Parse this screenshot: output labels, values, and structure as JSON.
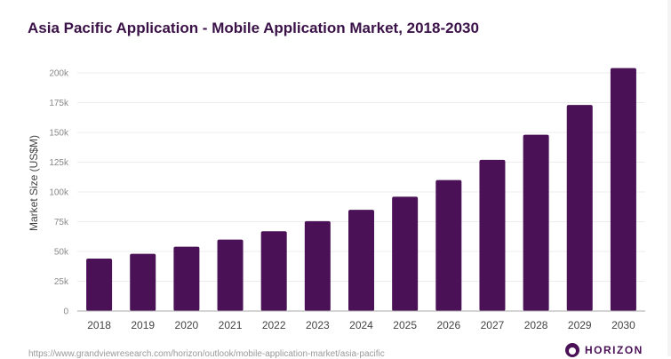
{
  "title": "Asia Pacific Application - Mobile Application Market, 2018-2030",
  "source_url": "https://www.grandviewresearch.com/horizon/outlook/mobile-application-market/asia-pacific",
  "logo_text": "HORIZON",
  "chart_data": {
    "type": "bar",
    "title": "Asia Pacific Application - Mobile Application Market, 2018-2030",
    "xlabel": "",
    "ylabel": "Market Size (US$M)",
    "categories": [
      "2018",
      "2019",
      "2020",
      "2021",
      "2022",
      "2023",
      "2024",
      "2025",
      "2026",
      "2027",
      "2028",
      "2029",
      "2030"
    ],
    "values": [
      44000,
      48000,
      54000,
      60000,
      67000,
      75500,
      85000,
      96000,
      110000,
      127000,
      148000,
      173000,
      204000
    ],
    "ylim": [
      0,
      200000
    ],
    "yticks": [
      0,
      25000,
      50000,
      75000,
      100000,
      125000,
      150000,
      175000,
      200000
    ],
    "ytick_labels": [
      "0",
      "25k",
      "50k",
      "75k",
      "100k",
      "125k",
      "150k",
      "175k",
      "200k"
    ],
    "grid": true,
    "bar_color": "#4b1157"
  }
}
